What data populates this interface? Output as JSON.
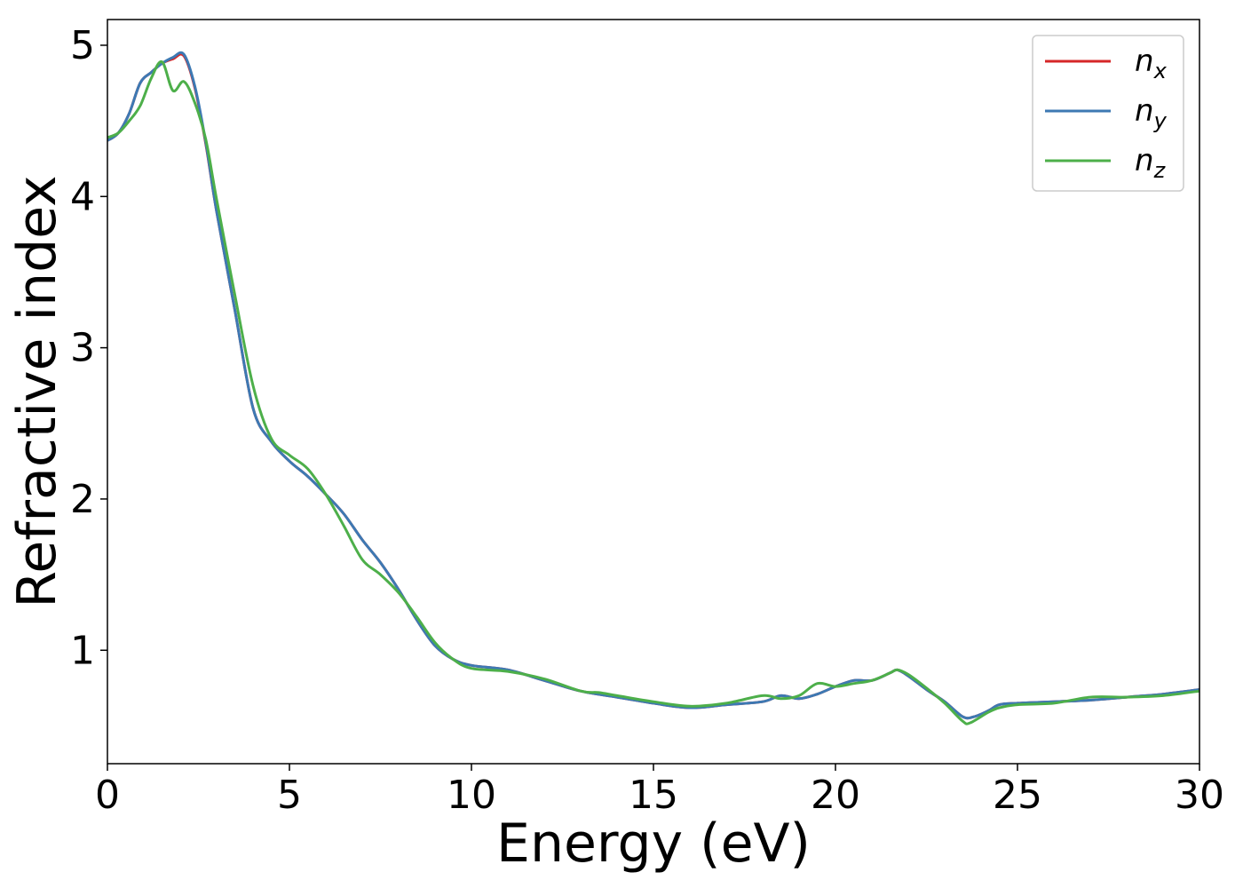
{
  "chart_data": {
    "type": "line",
    "xlabel": "Energy (eV)",
    "ylabel": "Refractive index",
    "xlim": [
      0,
      30
    ],
    "ylim": [
      0.25,
      5.17
    ],
    "xticks": [
      0,
      5,
      10,
      15,
      20,
      25,
      30
    ],
    "xtick_labels": [
      "0",
      "5",
      "10",
      "15",
      "20",
      "25",
      "30"
    ],
    "yticks": [
      1,
      2,
      3,
      4,
      5
    ],
    "ytick_labels": [
      "1",
      "2",
      "3",
      "4",
      "5"
    ],
    "grid": false,
    "legend_position": "top-right",
    "series": [
      {
        "name": "n_x",
        "legend_base": "n",
        "legend_sub": "x",
        "color": "#d62728",
        "x": [
          0,
          0.3,
          0.6,
          0.9,
          1.2,
          1.5,
          1.8,
          2.1,
          2.4,
          2.7,
          3.0,
          3.5,
          4.0,
          4.5,
          5.0,
          5.5,
          6.0,
          6.5,
          7.0,
          7.5,
          8.0,
          8.5,
          9.0,
          9.5,
          10.0,
          11.0,
          12.0,
          13.0,
          14.0,
          15.0,
          16.0,
          17.0,
          18.0,
          18.5,
          19.0,
          19.5,
          20.0,
          20.5,
          21.0,
          21.5,
          21.7,
          22.0,
          22.5,
          23.0,
          23.5,
          23.8,
          24.2,
          24.5,
          25.0,
          26.0,
          27.0,
          28.0,
          29.0,
          30.0
        ],
        "y": [
          4.37,
          4.42,
          4.55,
          4.75,
          4.82,
          4.88,
          4.91,
          4.93,
          4.72,
          4.35,
          3.9,
          3.25,
          2.6,
          2.38,
          2.25,
          2.15,
          2.03,
          1.9,
          1.73,
          1.58,
          1.4,
          1.2,
          1.03,
          0.94,
          0.9,
          0.87,
          0.8,
          0.73,
          0.69,
          0.65,
          0.62,
          0.64,
          0.66,
          0.7,
          0.68,
          0.71,
          0.76,
          0.8,
          0.8,
          0.85,
          0.87,
          0.83,
          0.74,
          0.66,
          0.56,
          0.56,
          0.6,
          0.64,
          0.65,
          0.66,
          0.67,
          0.69,
          0.71,
          0.74
        ]
      },
      {
        "name": "n_y",
        "legend_base": "n",
        "legend_sub": "y",
        "color": "#3d79b3",
        "x": [
          0,
          0.3,
          0.6,
          0.9,
          1.2,
          1.5,
          1.8,
          2.1,
          2.4,
          2.7,
          3.0,
          3.5,
          4.0,
          4.5,
          5.0,
          5.5,
          6.0,
          6.5,
          7.0,
          7.5,
          8.0,
          8.5,
          9.0,
          9.5,
          10.0,
          11.0,
          12.0,
          13.0,
          14.0,
          15.0,
          16.0,
          17.0,
          18.0,
          18.5,
          19.0,
          19.5,
          20.0,
          20.5,
          21.0,
          21.5,
          21.7,
          22.0,
          22.5,
          23.0,
          23.5,
          23.8,
          24.2,
          24.5,
          25.0,
          26.0,
          27.0,
          28.0,
          29.0,
          30.0
        ],
        "y": [
          4.37,
          4.42,
          4.55,
          4.75,
          4.82,
          4.88,
          4.92,
          4.94,
          4.73,
          4.36,
          3.9,
          3.25,
          2.6,
          2.38,
          2.25,
          2.15,
          2.03,
          1.9,
          1.73,
          1.58,
          1.4,
          1.2,
          1.03,
          0.94,
          0.9,
          0.87,
          0.8,
          0.73,
          0.69,
          0.65,
          0.62,
          0.64,
          0.66,
          0.7,
          0.68,
          0.71,
          0.76,
          0.8,
          0.8,
          0.85,
          0.87,
          0.83,
          0.74,
          0.66,
          0.56,
          0.56,
          0.6,
          0.64,
          0.65,
          0.66,
          0.67,
          0.69,
          0.71,
          0.74
        ]
      },
      {
        "name": "n_z",
        "legend_base": "n",
        "legend_sub": "z",
        "color": "#4daf4a",
        "x": [
          0,
          0.3,
          0.6,
          0.9,
          1.2,
          1.5,
          1.8,
          2.1,
          2.4,
          2.7,
          3.0,
          3.5,
          4.0,
          4.5,
          5.0,
          5.5,
          6.0,
          6.5,
          7.0,
          7.5,
          8.0,
          8.5,
          9.0,
          9.5,
          10.0,
          11.0,
          12.0,
          13.0,
          13.5,
          14.0,
          15.0,
          16.0,
          17.0,
          18.0,
          18.5,
          19.0,
          19.5,
          20.0,
          20.5,
          21.0,
          21.5,
          21.7,
          22.0,
          22.5,
          23.0,
          23.5,
          23.7,
          24.2,
          24.5,
          25.0,
          26.0,
          27.0,
          28.0,
          29.0,
          30.0
        ],
        "y": [
          4.39,
          4.42,
          4.5,
          4.6,
          4.78,
          4.89,
          4.7,
          4.76,
          4.62,
          4.38,
          3.98,
          3.35,
          2.75,
          2.4,
          2.29,
          2.2,
          2.03,
          1.82,
          1.6,
          1.5,
          1.38,
          1.22,
          1.05,
          0.94,
          0.88,
          0.86,
          0.81,
          0.73,
          0.72,
          0.7,
          0.66,
          0.63,
          0.65,
          0.7,
          0.68,
          0.7,
          0.78,
          0.76,
          0.78,
          0.8,
          0.85,
          0.87,
          0.84,
          0.75,
          0.65,
          0.53,
          0.52,
          0.59,
          0.62,
          0.64,
          0.65,
          0.69,
          0.69,
          0.7,
          0.73
        ]
      }
    ]
  }
}
